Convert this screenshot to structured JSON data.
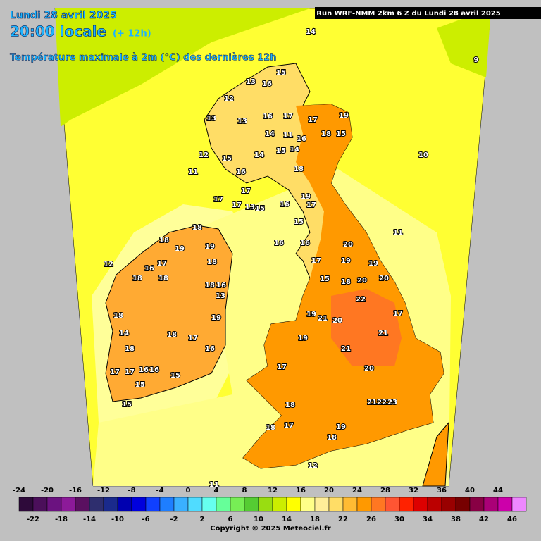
{
  "header": {
    "date": "Lundi 28 avril 2025",
    "time": "20:00 locale",
    "offset": "(+ 12h)",
    "subtitle": "Température maximale à 2m (°C) des dernières 12h",
    "run": "Run WRF-NMM 2km 6 Z du Lundi 28 avril 2025"
  },
  "map_labels": [
    12,
    13,
    16,
    15,
    13,
    13,
    16,
    17,
    17,
    19,
    18,
    15,
    14,
    11,
    16,
    14,
    12,
    11,
    15,
    16,
    14,
    15,
    18,
    10,
    17,
    17,
    17,
    13,
    15,
    19,
    16,
    17,
    15,
    11,
    20,
    16,
    16,
    17,
    19,
    19,
    15,
    18,
    20,
    20,
    22,
    17,
    19,
    21,
    20,
    21,
    19,
    21,
    20,
    17,
    2122,
    23,
    18,
    18,
    17,
    19,
    18,
    12,
    11,
    18,
    18,
    19,
    19,
    17,
    18,
    16,
    18,
    18,
    18,
    16,
    13,
    18,
    19,
    14,
    18,
    17,
    18,
    16,
    17,
    17,
    16,
    16,
    15,
    15,
    15,
    12,
    14,
    9
  ],
  "legend": {
    "values": [
      -24,
      -22,
      -20,
      -18,
      -16,
      -14,
      -12,
      -10,
      -8,
      -6,
      -4,
      -2,
      0,
      2,
      4,
      6,
      8,
      10,
      12,
      14,
      16,
      18,
      20,
      22,
      24,
      26,
      28,
      30,
      32,
      34,
      36,
      38,
      40,
      42,
      44,
      46
    ],
    "colors": [
      "#2e0a3a",
      "#4b0f5a",
      "#6b1280",
      "#8c1a99",
      "#5a1060",
      "#2e2e6e",
      "#1a2a8c",
      "#0000b0",
      "#0000dd",
      "#1040ff",
      "#1e7eff",
      "#3ab0ff",
      "#50dcff",
      "#66ffee",
      "#66ff99",
      "#77ee55",
      "#55cc33",
      "#99dd11",
      "#ccee00",
      "#ffff00",
      "#ffff88",
      "#ffee99",
      "#ffdd66",
      "#ffbb33",
      "#ff9900",
      "#ff7722",
      "#ff5533",
      "#ff2200",
      "#dd0000",
      "#bb0000",
      "#990000",
      "#770000",
      "#880044",
      "#aa0077",
      "#cc00aa",
      "#ee88ff"
    ]
  },
  "copyright": "Copyright © 2025 Meteociel.fr"
}
